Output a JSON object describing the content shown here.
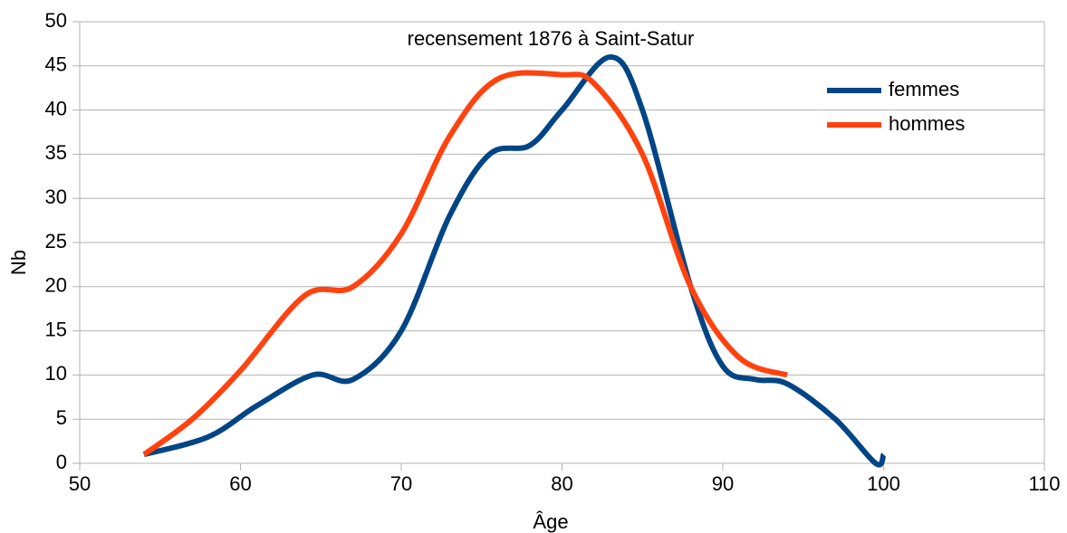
{
  "chart_data": {
    "type": "line",
    "title": "recensement 1876 à Saint-Satur",
    "x_label": "Âge",
    "y_label": "Nb",
    "series": [
      {
        "name": "femmes",
        "color": "#004586",
        "x": [
          54,
          58,
          61,
          64.5,
          67,
          70,
          73,
          75.5,
          78,
          80,
          83,
          85,
          88,
          90,
          92,
          94,
          97,
          99.5,
          100
        ],
        "values": [
          1,
          3,
          6.5,
          10,
          9.5,
          15,
          28,
          35,
          36,
          40,
          46,
          40,
          20,
          11,
          9.5,
          9,
          5,
          0,
          1
        ]
      },
      {
        "name": "hommes",
        "color": "#ff420e",
        "x": [
          54,
          57,
          60,
          64,
          67,
          70,
          73,
          76,
          80,
          82,
          85,
          88,
          91,
          94
        ],
        "values": [
          1,
          5,
          10.5,
          19,
          20,
          26,
          37,
          43.5,
          44,
          43,
          35,
          20,
          12,
          10
        ]
      }
    ],
    "xlim": [
      50,
      110
    ],
    "xticks": [
      50,
      60,
      70,
      80,
      90,
      100,
      110
    ],
    "ylim": [
      0,
      50
    ],
    "yticks": [
      0,
      5,
      10,
      15,
      20,
      25,
      30,
      35,
      40,
      45,
      50
    ],
    "grid": true,
    "legend": "upper right",
    "smooth": true
  }
}
